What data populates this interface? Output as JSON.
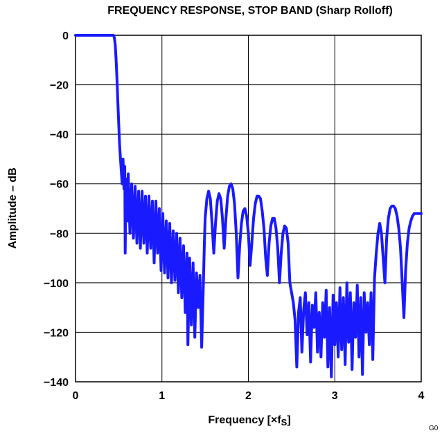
{
  "chart_data": {
    "type": "line",
    "title": "FREQUENCY RESPONSE, STOP BAND (Sharp Rolloff)",
    "xlabel": "Frequency [×f",
    "xlabel_sub": "S",
    "xlabel_close": "]",
    "ylabel": "Amplitude – dB",
    "figure_code": "G0",
    "xlim": [
      0,
      4
    ],
    "ylim": [
      -140,
      0
    ],
    "xticks": [
      "0",
      "1",
      "2",
      "3",
      "4"
    ],
    "yticks": [
      "0",
      "−20",
      "−40",
      "−60",
      "−80",
      "−100",
      "−120",
      "−140"
    ],
    "xtick_values": [
      0,
      1,
      2,
      3,
      4
    ],
    "ytick_values": [
      0,
      -20,
      -40,
      -60,
      -80,
      -100,
      -120,
      -140
    ],
    "grid": true,
    "line_color": "#1a1aff",
    "series": [
      {
        "values_xy": [
          [
            0,
            0
          ],
          [
            0.2,
            0
          ],
          [
            0.44,
            0
          ],
          [
            0.45,
            -1
          ],
          [
            0.46,
            -4
          ],
          [
            0.47,
            -10
          ],
          [
            0.48,
            -18
          ],
          [
            0.49,
            -27
          ],
          [
            0.5,
            -36
          ],
          [
            0.51,
            -44
          ],
          [
            0.52,
            -50
          ],
          [
            0.53,
            -55
          ],
          [
            0.54,
            -60
          ],
          [
            0.55,
            -50
          ],
          [
            0.56,
            -62
          ],
          [
            0.57,
            -53
          ],
          [
            0.575,
            -88
          ],
          [
            0.585,
            -58
          ],
          [
            0.6,
            -75
          ],
          [
            0.61,
            -56
          ],
          [
            0.63,
            -80
          ],
          [
            0.65,
            -60
          ],
          [
            0.67,
            -82
          ],
          [
            0.69,
            -61
          ],
          [
            0.71,
            -84
          ],
          [
            0.73,
            -63
          ],
          [
            0.75,
            -86
          ],
          [
            0.77,
            -63
          ],
          [
            0.79,
            -84
          ],
          [
            0.81,
            -65
          ],
          [
            0.83,
            -88
          ],
          [
            0.85,
            -65
          ],
          [
            0.87,
            -86
          ],
          [
            0.89,
            -67
          ],
          [
            0.91,
            -92
          ],
          [
            0.93,
            -67
          ],
          [
            0.95,
            -88
          ],
          [
            0.97,
            -70
          ],
          [
            0.99,
            -95
          ],
          [
            1.01,
            -72
          ],
          [
            1.03,
            -96
          ],
          [
            1.05,
            -75
          ],
          [
            1.07,
            -98
          ],
          [
            1.09,
            -76
          ],
          [
            1.11,
            -100
          ],
          [
            1.13,
            -79
          ],
          [
            1.15,
            -99
          ],
          [
            1.17,
            -80
          ],
          [
            1.19,
            -104
          ],
          [
            1.21,
            -82
          ],
          [
            1.23,
            -106
          ],
          [
            1.25,
            -85
          ],
          [
            1.27,
            -112
          ],
          [
            1.29,
            -88
          ],
          [
            1.3,
            -125
          ],
          [
            1.32,
            -90
          ],
          [
            1.34,
            -117
          ],
          [
            1.36,
            -92
          ],
          [
            1.38,
            -122
          ],
          [
            1.4,
            -96
          ],
          [
            1.42,
            -110
          ],
          [
            1.44,
            -97
          ],
          [
            1.46,
            -126
          ],
          [
            1.48,
            -100
          ],
          [
            1.49,
            -85
          ],
          [
            1.5,
            -74
          ],
          [
            1.52,
            -66
          ],
          [
            1.54,
            -63
          ],
          [
            1.56,
            -66
          ],
          [
            1.58,
            -76
          ],
          [
            1.6,
            -88
          ],
          [
            1.62,
            -76
          ],
          [
            1.64,
            -67
          ],
          [
            1.66,
            -64
          ],
          [
            1.68,
            -66
          ],
          [
            1.7,
            -74
          ],
          [
            1.72,
            -86
          ],
          [
            1.74,
            -74
          ],
          [
            1.76,
            -65
          ],
          [
            1.78,
            -61
          ],
          [
            1.8,
            -60
          ],
          [
            1.82,
            -62
          ],
          [
            1.84,
            -68
          ],
          [
            1.86,
            -80
          ],
          [
            1.88,
            -98
          ],
          [
            1.9,
            -85
          ],
          [
            1.92,
            -76
          ],
          [
            1.94,
            -71
          ],
          [
            1.96,
            -70
          ],
          [
            1.98,
            -73
          ],
          [
            2.0,
            -80
          ],
          [
            2.02,
            -93
          ],
          [
            2.04,
            -84
          ],
          [
            2.06,
            -74
          ],
          [
            2.08,
            -68
          ],
          [
            2.1,
            -65
          ],
          [
            2.12,
            -65
          ],
          [
            2.14,
            -66
          ],
          [
            2.16,
            -71
          ],
          [
            2.18,
            -78
          ],
          [
            2.2,
            -90
          ],
          [
            2.22,
            -97
          ],
          [
            2.24,
            -84
          ],
          [
            2.26,
            -77
          ],
          [
            2.28,
            -74
          ],
          [
            2.3,
            -74
          ],
          [
            2.32,
            -78
          ],
          [
            2.34,
            -86
          ],
          [
            2.36,
            -100
          ],
          [
            2.38,
            -88
          ],
          [
            2.4,
            -80
          ],
          [
            2.42,
            -77
          ],
          [
            2.44,
            -78
          ],
          [
            2.46,
            -84
          ],
          [
            2.48,
            -100
          ],
          [
            2.5,
            -104
          ],
          [
            2.52,
            -108
          ],
          [
            2.54,
            -115
          ],
          [
            2.56,
            -134
          ],
          [
            2.58,
            -112
          ],
          [
            2.6,
            -106
          ],
          [
            2.62,
            -128
          ],
          [
            2.64,
            -111
          ],
          [
            2.66,
            -104
          ],
          [
            2.68,
            -121
          ],
          [
            2.7,
            -108
          ],
          [
            2.72,
            -132
          ],
          [
            2.74,
            -109
          ],
          [
            2.76,
            -118
          ],
          [
            2.78,
            -104
          ],
          [
            2.8,
            -128
          ],
          [
            2.82,
            -112
          ],
          [
            2.84,
            -130
          ],
          [
            2.86,
            -108
          ],
          [
            2.88,
            -122
          ],
          [
            2.9,
            -103
          ],
          [
            2.92,
            -134
          ],
          [
            2.94,
            -110
          ],
          [
            2.96,
            -138
          ],
          [
            2.98,
            -105
          ],
          [
            3.0,
            -125
          ],
          [
            3.02,
            -108
          ],
          [
            3.04,
            -130
          ],
          [
            3.06,
            -102
          ],
          [
            3.08,
            -127
          ],
          [
            3.1,
            -106
          ],
          [
            3.12,
            -133
          ],
          [
            3.14,
            -100
          ],
          [
            3.16,
            -124
          ],
          [
            3.18,
            -104
          ],
          [
            3.2,
            -135
          ],
          [
            3.22,
            -108
          ],
          [
            3.24,
            -122
          ],
          [
            3.26,
            -101
          ],
          [
            3.28,
            -130
          ],
          [
            3.3,
            -106
          ],
          [
            3.32,
            -137
          ],
          [
            3.34,
            -104
          ],
          [
            3.36,
            -120
          ],
          [
            3.38,
            -108
          ],
          [
            3.4,
            -125
          ],
          [
            3.42,
            -104
          ],
          [
            3.44,
            -131
          ],
          [
            3.46,
            -98
          ],
          [
            3.48,
            -88
          ],
          [
            3.5,
            -80
          ],
          [
            3.52,
            -76
          ],
          [
            3.54,
            -80
          ],
          [
            3.56,
            -90
          ],
          [
            3.58,
            -100
          ],
          [
            3.6,
            -82
          ],
          [
            3.62,
            -74
          ],
          [
            3.64,
            -70
          ],
          [
            3.66,
            -69
          ],
          [
            3.68,
            -69
          ],
          [
            3.7,
            -70
          ],
          [
            3.72,
            -73
          ],
          [
            3.74,
            -78
          ],
          [
            3.76,
            -86
          ],
          [
            3.78,
            -100
          ],
          [
            3.8,
            -114
          ],
          [
            3.82,
            -95
          ],
          [
            3.84,
            -84
          ],
          [
            3.86,
            -78
          ],
          [
            3.88,
            -75
          ],
          [
            3.9,
            -73
          ],
          [
            3.92,
            -72
          ],
          [
            3.95,
            -72
          ],
          [
            4.0,
            -72
          ]
        ]
      }
    ]
  }
}
